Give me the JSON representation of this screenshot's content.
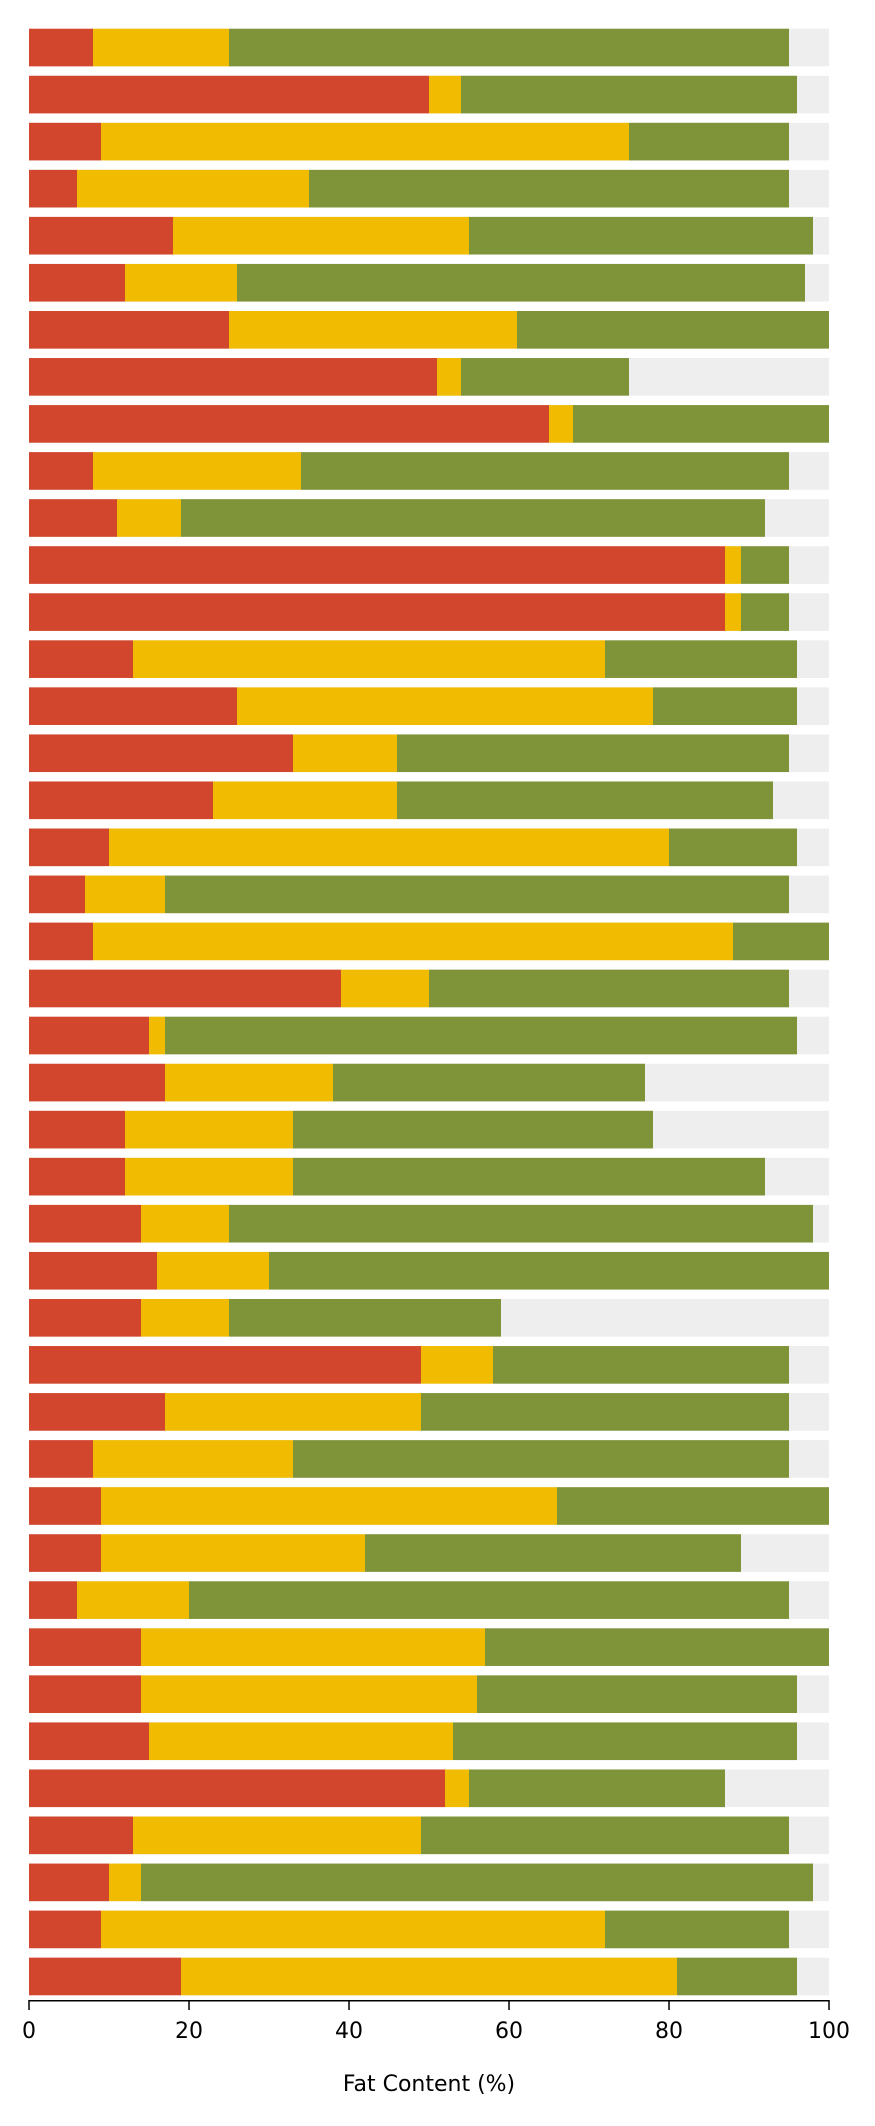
{
  "chart_data": {
    "type": "bar",
    "orientation": "horizontal",
    "stacked": true,
    "xlabel": "Fat Content (%)",
    "ylabel": "",
    "xlim": [
      0,
      100
    ],
    "xticks": [
      0,
      20,
      40,
      60,
      80,
      100
    ],
    "grid": false,
    "legend": "none",
    "background_track": {
      "value": 100,
      "color": "#eeeeee"
    },
    "series": [
      {
        "color": "#d2462d",
        "values": [
          8,
          50,
          9,
          6,
          18,
          12,
          25,
          51,
          65,
          8,
          11,
          87,
          87,
          13,
          26,
          33,
          23,
          10,
          7,
          8,
          39,
          15,
          17,
          12,
          12,
          14,
          16,
          14,
          49,
          17,
          8,
          9,
          9,
          6,
          14,
          14,
          15,
          52,
          13,
          10,
          9,
          19
        ]
      },
      {
        "color": "#f0bb00",
        "values": [
          17,
          4,
          66,
          29,
          37,
          14,
          36,
          3,
          3,
          26,
          8,
          2,
          2,
          59,
          52,
          13,
          23,
          70,
          10,
          80,
          11,
          2,
          21,
          21,
          21,
          11,
          14,
          11,
          9,
          32,
          25,
          57,
          33,
          14,
          43,
          42,
          38,
          3,
          36,
          4,
          63,
          62
        ]
      },
      {
        "color": "#7f9439",
        "values": [
          70,
          42,
          20,
          60,
          43,
          71,
          39,
          21,
          32,
          61,
          73,
          6,
          6,
          24,
          18,
          49,
          47,
          16,
          78,
          12,
          45,
          79,
          39,
          45,
          59,
          73,
          70,
          34,
          37,
          46,
          62,
          34,
          47,
          75,
          43,
          40,
          43,
          32,
          46,
          84,
          23,
          15
        ]
      }
    ]
  }
}
